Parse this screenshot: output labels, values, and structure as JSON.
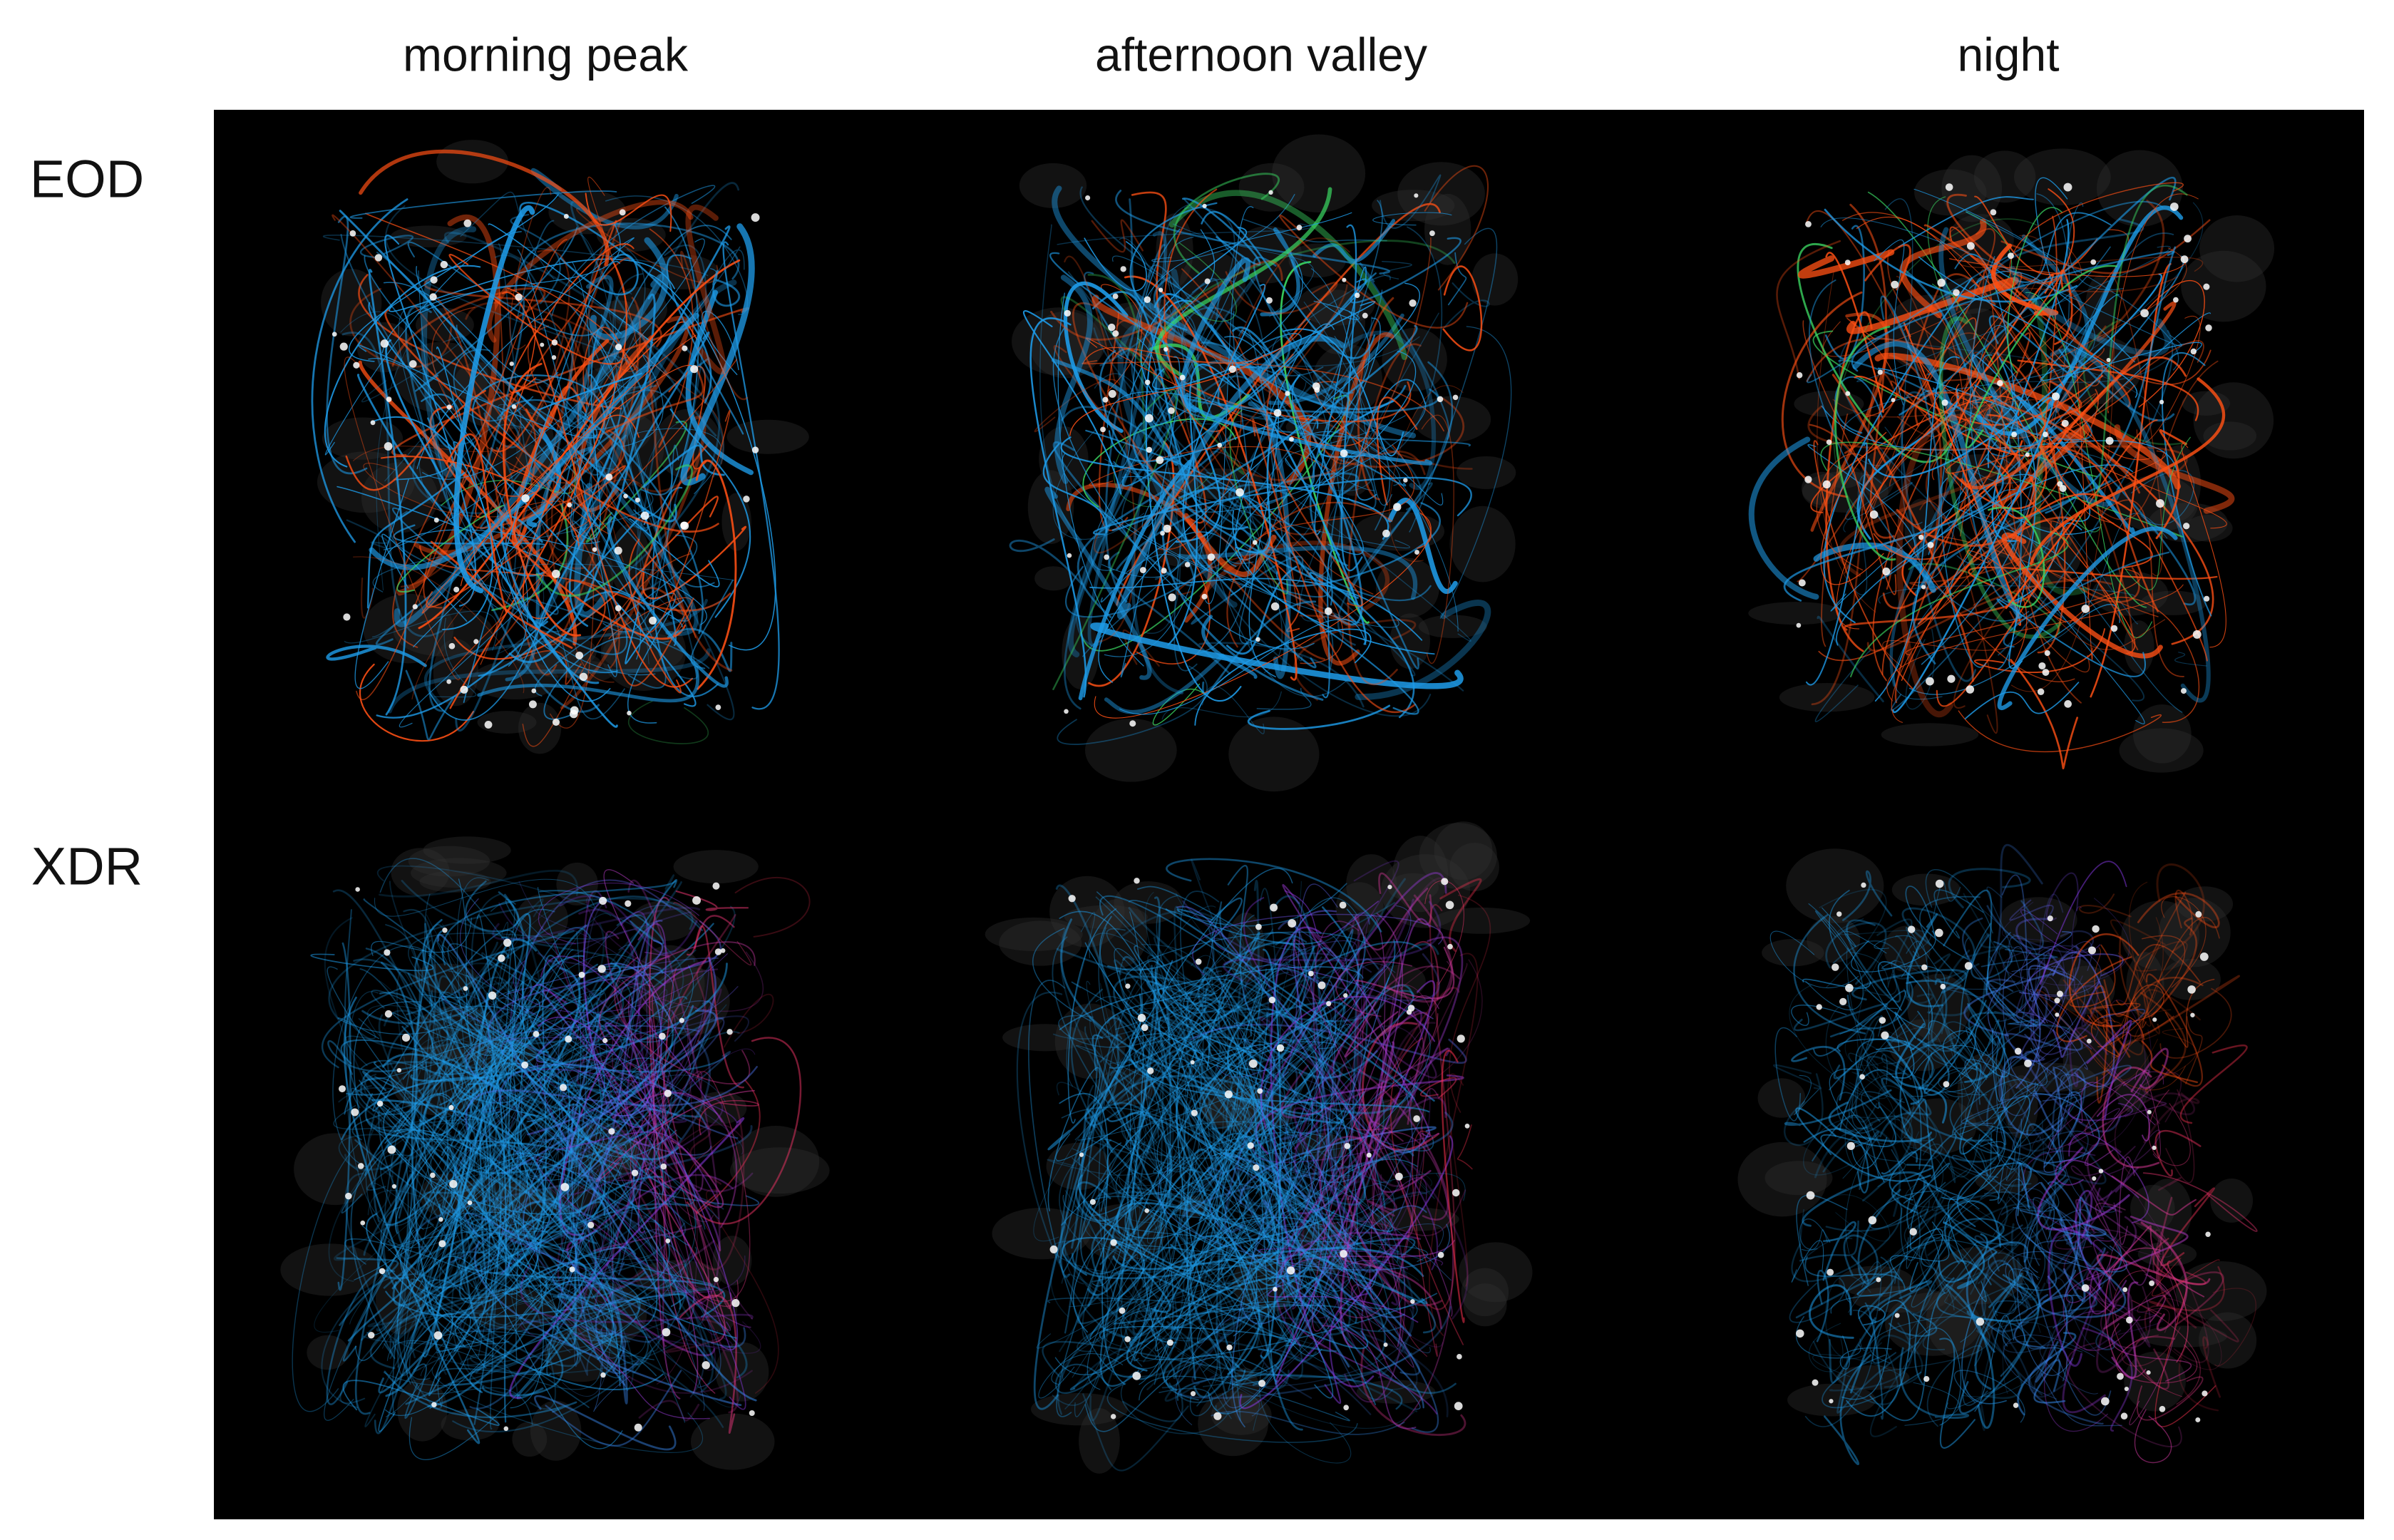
{
  "column_labels": [
    "morning peak",
    "afternoon valley",
    "night"
  ],
  "row_labels": [
    "EOD",
    "XDR"
  ]
}
